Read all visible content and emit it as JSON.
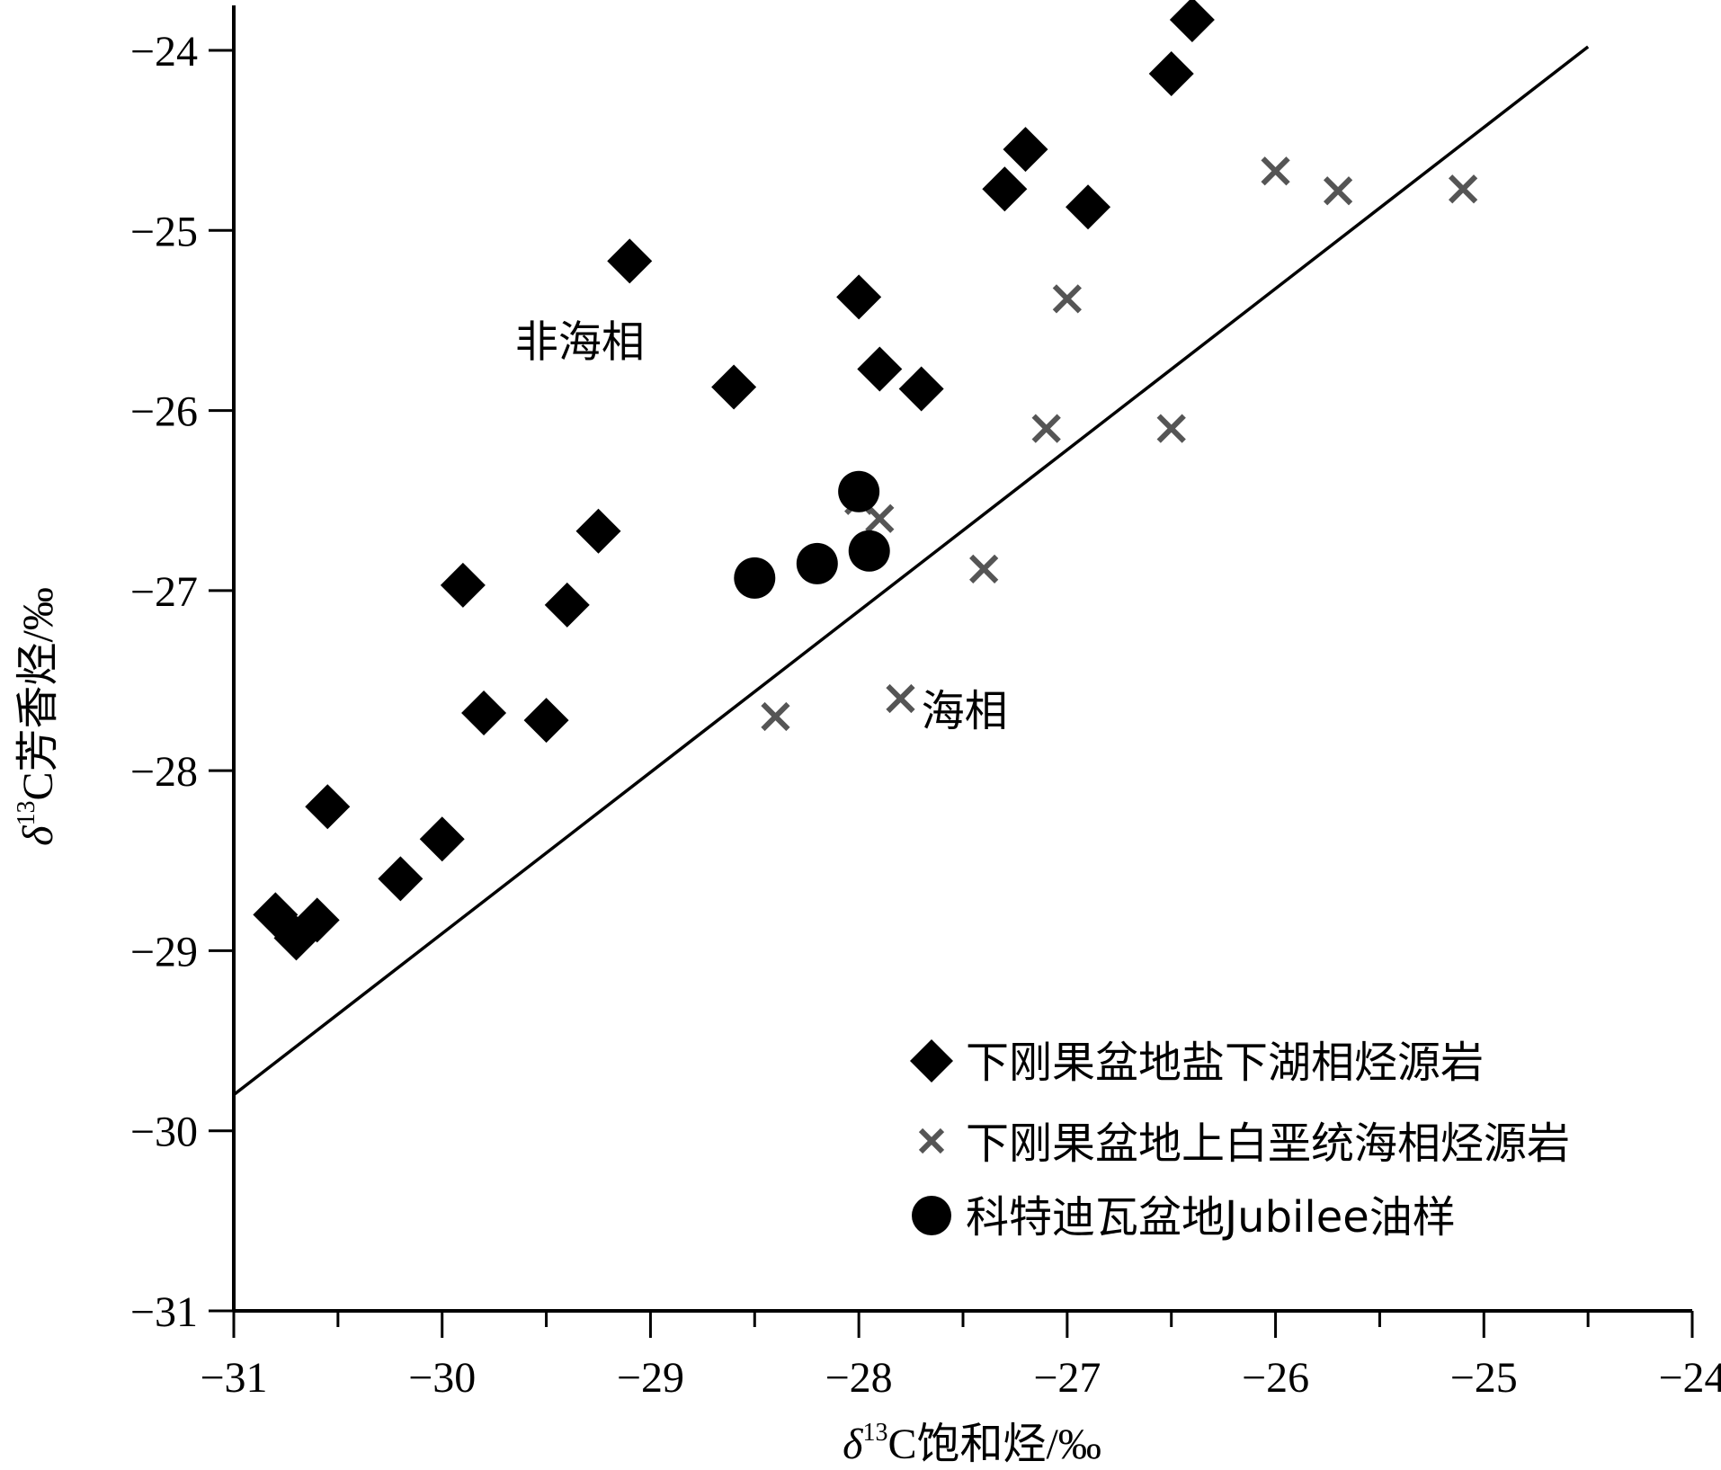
{
  "chart_data": {
    "type": "scatter",
    "xlabel": {
      "delta": "δ",
      "sup": "13",
      "main": "C饱和烃/‰"
    },
    "ylabel": {
      "delta": "δ",
      "sup": "13",
      "main": "C芳香烃/‰"
    },
    "xlim": [
      -31,
      -24
    ],
    "ylim": [
      -31,
      -23.8
    ],
    "x_ticks": [
      -31,
      -30,
      -29,
      -28,
      -27,
      -26,
      -25,
      -24
    ],
    "y_ticks": [
      -24,
      -25,
      -26,
      -27,
      -28,
      -29,
      -30,
      -31
    ],
    "x_tick_labels": [
      "−31",
      "−30",
      "−29",
      "−28",
      "−27",
      "−26",
      "−25",
      "−24"
    ],
    "y_tick_labels": [
      "−24",
      "−25",
      "−26",
      "−27",
      "−28",
      "−29",
      "−30",
      "−31"
    ],
    "grid": false,
    "legend_position": "bottom-right",
    "annotations": [
      {
        "text": "非海相",
        "x": -29.65,
        "y": -25.7
      },
      {
        "text": "海相",
        "x": -27.7,
        "y": -27.75
      }
    ],
    "reference_line": {
      "x": [
        -31,
        -24.5
      ],
      "y": [
        -29.8,
        -23.98
      ],
      "color": "#000000"
    },
    "series": [
      {
        "name": "下刚果盆地盐下湖相烃源岩",
        "marker": "diamond",
        "color": "#000000",
        "points": [
          [
            -26.4,
            -23.83
          ],
          [
            -26.5,
            -24.13
          ],
          [
            -27.2,
            -24.55
          ],
          [
            -27.3,
            -24.77
          ],
          [
            -26.9,
            -24.87
          ],
          [
            -29.1,
            -25.17
          ],
          [
            -28.0,
            -25.37
          ],
          [
            -27.9,
            -25.77
          ],
          [
            -27.7,
            -25.88
          ],
          [
            -28.6,
            -25.87
          ],
          [
            -29.25,
            -26.67
          ],
          [
            -29.9,
            -26.97
          ],
          [
            -29.4,
            -27.08
          ],
          [
            -29.8,
            -27.68
          ],
          [
            -29.5,
            -27.72
          ],
          [
            -30.55,
            -28.2
          ],
          [
            -30.0,
            -28.38
          ],
          [
            -30.2,
            -28.6
          ],
          [
            -30.8,
            -28.8
          ],
          [
            -30.7,
            -28.93
          ],
          [
            -30.6,
            -28.83
          ]
        ]
      },
      {
        "name": "下刚果盆地上白垩统海相烃源岩",
        "marker": "x",
        "color": "#555555",
        "points": [
          [
            -26.0,
            -24.67
          ],
          [
            -25.7,
            -24.78
          ],
          [
            -25.1,
            -24.77
          ],
          [
            -27.0,
            -25.38
          ],
          [
            -27.1,
            -26.1
          ],
          [
            -26.5,
            -26.1
          ],
          [
            -28.0,
            -26.5
          ],
          [
            -27.9,
            -26.6
          ],
          [
            -27.4,
            -26.88
          ],
          [
            -28.4,
            -27.7
          ],
          [
            -27.8,
            -27.6
          ]
        ]
      },
      {
        "name": "科特迪瓦盆地Jubilee油样",
        "marker": "circle",
        "color": "#000000",
        "points": [
          [
            -28.0,
            -26.45
          ],
          [
            -28.5,
            -26.93
          ],
          [
            -28.2,
            -26.85
          ],
          [
            -27.95,
            -26.78
          ]
        ]
      }
    ]
  }
}
